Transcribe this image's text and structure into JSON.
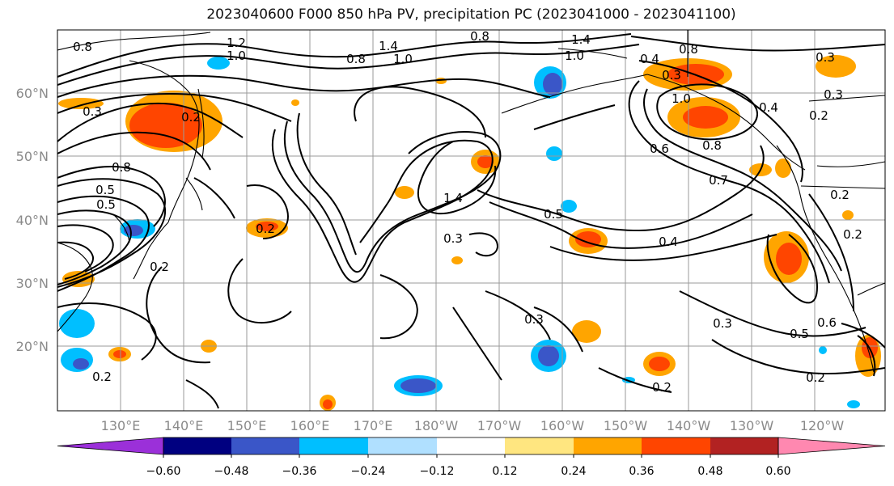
{
  "title": "2023040600 F000 850 hPa PV, precipitation PC (2023041000 - 2023041100)",
  "map": {
    "lat_labels": [
      "60°N",
      "50°N",
      "40°N",
      "30°N",
      "20°N"
    ],
    "lon_labels": [
      "130°E",
      "140°E",
      "150°E",
      "160°E",
      "170°E",
      "180°W",
      "170°W",
      "160°W",
      "150°W",
      "140°W",
      "130°W",
      "120°W"
    ],
    "contour_labels": [
      "0.8",
      "1.2",
      "1.0",
      "1.4",
      "0.8",
      "1.0",
      "0.8",
      "1.4",
      "1.0",
      "0.4",
      "0.8",
      "0.3",
      "1.0",
      "0.3",
      "0.2",
      "0.4",
      "0.3",
      "0.2",
      "0.3",
      "0.8",
      "0.5",
      "0.6",
      "0.7",
      "0.8",
      "1.4",
      "0.5",
      "0.2",
      "0.3",
      "0.5",
      "0.2",
      "0.4",
      "0.2",
      "0.2",
      "0.6",
      "0.5",
      "0.3",
      "0.3",
      "0.2",
      "0.2",
      "0.2"
    ],
    "coastline_color": "#000000",
    "grid_color": "#9a9a9a"
  },
  "colorbar": {
    "ticks": [
      "−0.60",
      "−0.48",
      "−0.36",
      "−0.24",
      "−0.12",
      "0.12",
      "0.24",
      "0.36",
      "0.48",
      "0.60"
    ],
    "colors": [
      "#9b30d9",
      "#000080",
      "#3a56c8",
      "#00bfff",
      "#b0e0ff",
      "#ffffff",
      "#ffe680",
      "#ffa500",
      "#ff4500",
      "#b22222",
      "#ff88b0"
    ]
  }
}
